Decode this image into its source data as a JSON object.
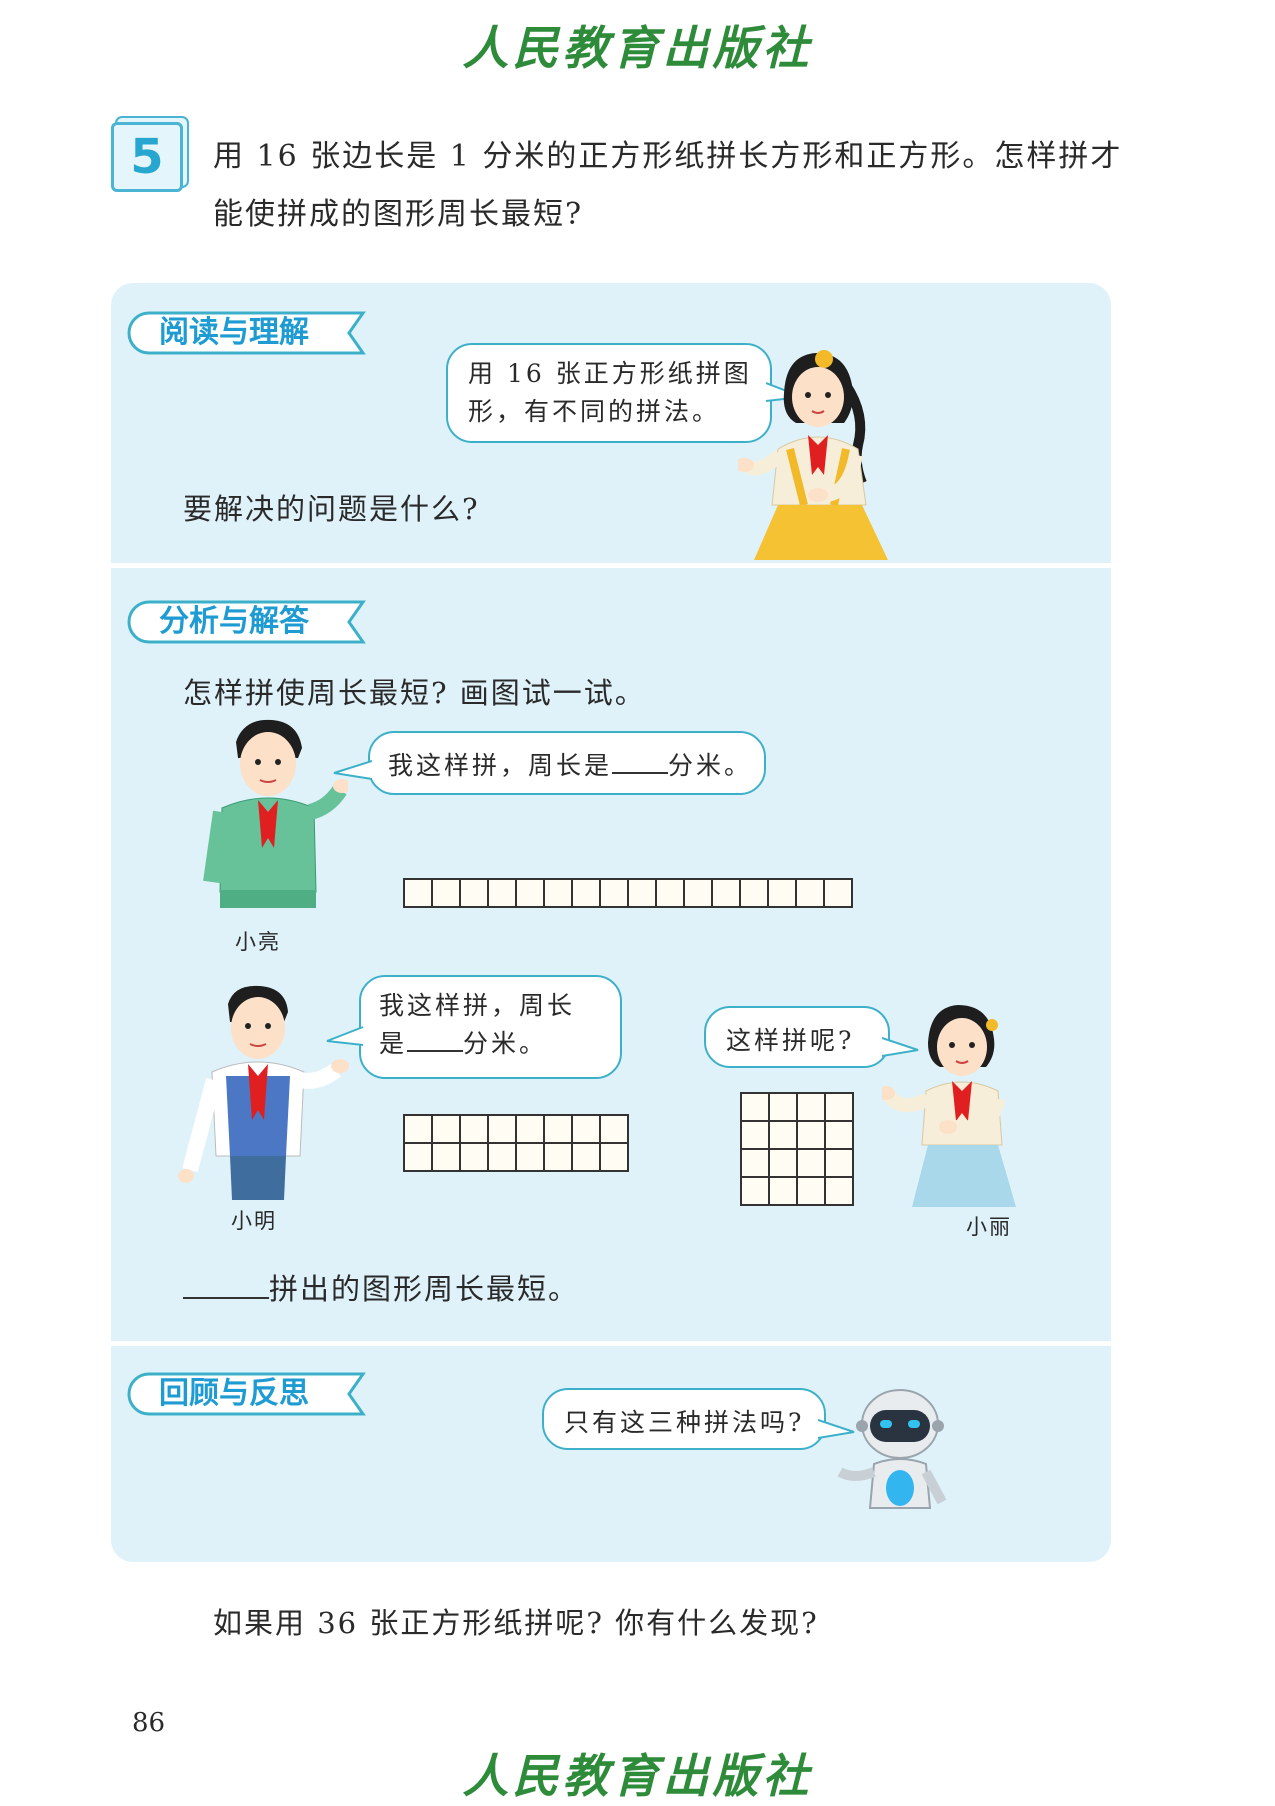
{
  "publisher": "人民教育出版社",
  "problem": {
    "number": "5",
    "text": "用 16 张边长是 1 分米的正方形纸拼长方形和正方形。怎样拼才能使拼成的图形周长最短?"
  },
  "sections": {
    "read": {
      "title": "阅读与理解",
      "bubble": "用 16 张正方形纸拼图形，有不同的拼法。",
      "question": "要解决的问题是什么?"
    },
    "analyze": {
      "title": "分析与解答",
      "prompt": "怎样拼使周长最短? 画图试一试。",
      "xiaoliang": {
        "name": "小亮",
        "bubble_before": "我这样拼，周长是",
        "bubble_after": "分米。"
      },
      "xiaoming": {
        "name": "小明",
        "bubble_line1": "我这样拼，周长",
        "bubble_before": "是",
        "bubble_after": "分米。"
      },
      "xiaoli": {
        "name": "小丽",
        "bubble": "这样拼呢?"
      },
      "conclusion": "拼出的图形周长最短。"
    },
    "reflect": {
      "title": "回顾与反思",
      "bubble": "只有这三种拼法吗?"
    }
  },
  "extension": "如果用 36 张正方形纸拼呢? 你有什么发现?",
  "page_number": "86",
  "colors": {
    "panel": "#dff2fa",
    "accent": "#1d9bd2",
    "bubble_border": "#3db0c9",
    "publisher": "#2e8b3a"
  }
}
